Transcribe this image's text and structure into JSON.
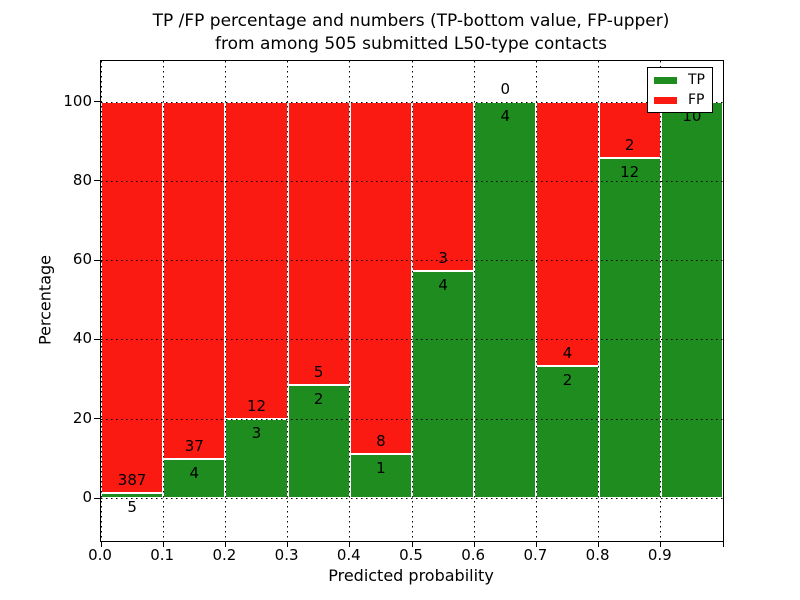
{
  "title": {
    "line1": "TP /FP percentage and numbers (TP-bottom value, FP-upper)",
    "line2": "from among 505 submitted L50-type contacts"
  },
  "x_axis": {
    "label": "Predicted probability",
    "tick_labels": [
      "0.0",
      "0.1",
      "0.2",
      "0.3",
      "0.4",
      "0.5",
      "0.6",
      "0.7",
      "0.8",
      "0.9"
    ]
  },
  "y_axis": {
    "label": "Percentage",
    "tick_labels": [
      "0",
      "20",
      "40",
      "60",
      "80",
      "100"
    ]
  },
  "legend": {
    "items": [
      {
        "label": "TP",
        "color": "#1e8c1e"
      },
      {
        "label": "FP",
        "color": "#fa1a12"
      }
    ],
    "position": "upper right"
  },
  "chart_data": {
    "type": "bar",
    "stacked": true,
    "normalized": "each bin stacked to 100%",
    "title": "TP /FP percentage and numbers (TP-bottom value, FP-upper) from among 505 submitted L50-type contacts",
    "xlabel": "Predicted probability",
    "ylabel": "Percentage",
    "x_bin_starts": [
      0.0,
      0.1,
      0.2,
      0.3,
      0.4,
      0.5,
      0.6,
      0.7,
      0.8,
      0.9
    ],
    "bin_width": 0.1,
    "series": [
      {
        "name": "TP",
        "color": "#1e8c1e",
        "counts": [
          5,
          4,
          3,
          2,
          1,
          4,
          4,
          2,
          12,
          10
        ]
      },
      {
        "name": "FP",
        "color": "#fa1a12",
        "counts": [
          387,
          37,
          12,
          5,
          8,
          3,
          0,
          4,
          2,
          0
        ]
      }
    ],
    "tp_percent": [
      1.28,
      9.76,
      20.0,
      28.57,
      11.11,
      57.14,
      100.0,
      33.33,
      85.71,
      100.0
    ],
    "total_contacts": 505,
    "ylim": [
      -11,
      110
    ],
    "yticks": [
      0,
      20,
      40,
      60,
      80,
      100
    ],
    "grid": "dotted",
    "bar_edge_color": "#ffffff",
    "legend_position": "upper right"
  }
}
